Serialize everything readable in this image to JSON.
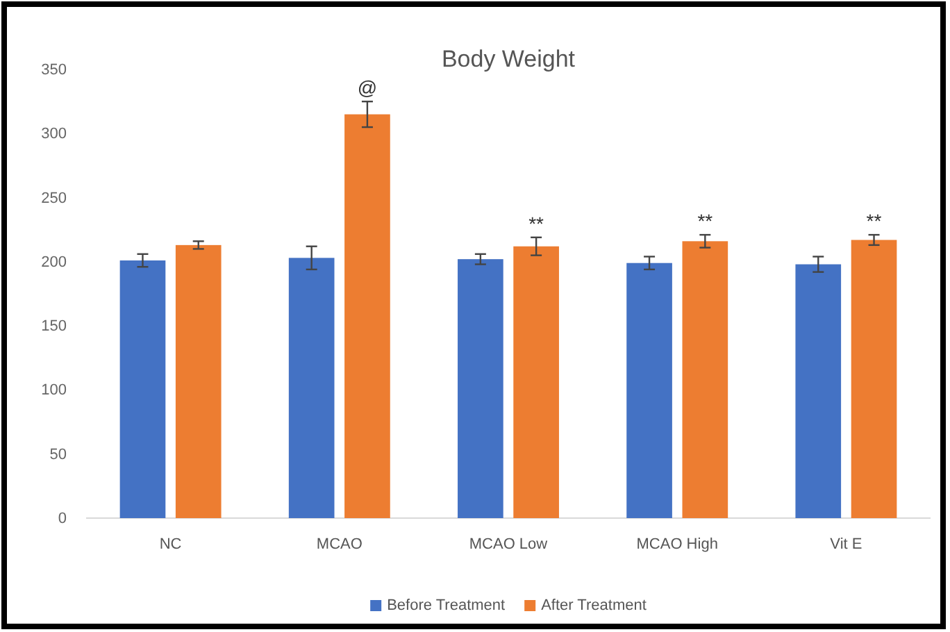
{
  "chart_data": {
    "type": "bar",
    "title": "Body Weight",
    "categories": [
      "NC",
      "MCAO",
      "MCAO Low",
      "MCAO High",
      "Vit E"
    ],
    "series": [
      {
        "name": "Before Treatment",
        "color": "#4472c4",
        "values": [
          201,
          203,
          202,
          199,
          198
        ],
        "errors": [
          5,
          9,
          4,
          5,
          6
        ]
      },
      {
        "name": "After Treatment",
        "color": "#ed7d31",
        "values": [
          213,
          315,
          212,
          216,
          217
        ],
        "errors": [
          3,
          10,
          7,
          5,
          4
        ]
      }
    ],
    "annotations": [
      {
        "text": "@",
        "x": "MCAO",
        "y": 315
      },
      {
        "text": "**",
        "x": "MCAO Low",
        "y": 212
      },
      {
        "text": "**",
        "x": "MCAO High",
        "y": 216
      },
      {
        "text": "**",
        "x": "Vit E",
        "y": 217
      }
    ],
    "ylim": [
      0,
      350
    ],
    "yticks": [
      0,
      50,
      100,
      150,
      200,
      250,
      300,
      350
    ],
    "grid": false,
    "legend": "bottom"
  }
}
